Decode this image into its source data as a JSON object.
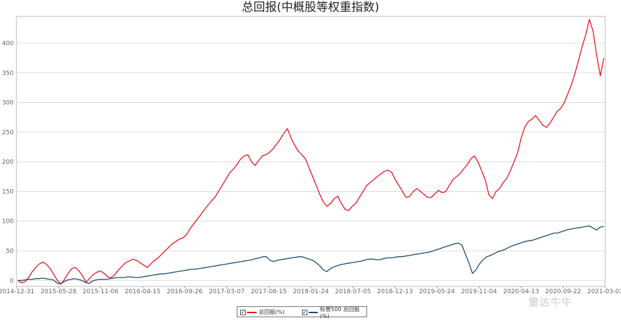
{
  "chart_data": {
    "type": "line",
    "title": "总回报(中概股等权重指数)",
    "xlabel": "",
    "ylabel": "",
    "ylim": [
      -10,
      445
    ],
    "yticks": [
      0,
      50,
      100,
      150,
      200,
      250,
      300,
      350,
      400
    ],
    "grid": "horizontal",
    "legend_position": "bottom",
    "x_tick_labels": [
      "2014-12-31",
      "2015-05-28",
      "2015-11-06",
      "2016-04-15",
      "2016-09-26",
      "2017-03-07",
      "2017-08-15",
      "2018-01-24",
      "2018-07-05",
      "2018-12-13",
      "2019-05-24",
      "2019-11-04",
      "2020-04-13",
      "2020-09-22",
      "2021-03-03"
    ],
    "series": [
      {
        "name": "总回报(%)",
        "color": "#e8141c",
        "values": [
          0,
          -4,
          -2,
          5,
          15,
          22,
          28,
          31,
          27,
          20,
          10,
          0,
          -6,
          2,
          12,
          20,
          22,
          16,
          8,
          -3,
          4,
          10,
          14,
          16,
          12,
          6,
          5,
          10,
          18,
          24,
          30,
          33,
          36,
          34,
          30,
          26,
          22,
          28,
          34,
          38,
          44,
          50,
          56,
          62,
          66,
          70,
          72,
          78,
          88,
          96,
          104,
          112,
          120,
          128,
          135,
          142,
          152,
          162,
          172,
          182,
          188,
          196,
          205,
          210,
          212,
          200,
          194,
          202,
          210,
          212,
          216,
          222,
          230,
          238,
          248,
          256,
          240,
          228,
          218,
          212,
          205,
          190,
          175,
          160,
          145,
          132,
          125,
          130,
          138,
          142,
          130,
          120,
          118,
          125,
          130,
          140,
          150,
          160,
          165,
          170,
          175,
          180,
          184,
          186,
          182,
          170,
          160,
          150,
          140,
          142,
          150,
          155,
          150,
          145,
          140,
          140,
          146,
          152,
          148,
          150,
          160,
          170,
          175,
          180,
          188,
          195,
          205,
          210,
          200,
          185,
          170,
          145,
          138,
          150,
          155,
          165,
          172,
          185,
          200,
          215,
          240,
          258,
          268,
          272,
          278,
          270,
          262,
          258,
          265,
          275,
          285,
          290,
          300,
          315,
          330,
          350,
          372,
          395,
          415,
          440,
          420,
          380,
          345,
          375
        ]
      },
      {
        "name": "标普500 总回报(%)",
        "color": "#1c4a6e",
        "values": [
          0,
          0,
          1,
          2,
          2,
          3,
          3,
          4,
          3,
          2,
          1,
          -4,
          -6,
          -2,
          1,
          2,
          3,
          2,
          0,
          -3,
          -5,
          -1,
          1,
          2,
          2,
          2,
          3,
          4,
          5,
          5,
          5,
          6,
          6,
          5,
          5,
          6,
          7,
          8,
          9,
          10,
          11,
          11,
          12,
          13,
          14,
          15,
          16,
          17,
          18,
          19,
          19,
          20,
          21,
          22,
          23,
          24,
          25,
          26,
          27,
          28,
          29,
          30,
          31,
          32,
          33,
          34,
          35,
          37,
          38,
          40,
          40,
          34,
          32,
          34,
          35,
          36,
          37,
          38,
          39,
          40,
          40,
          38,
          36,
          34,
          30,
          25,
          18,
          15,
          20,
          23,
          25,
          27,
          28,
          29,
          30,
          31,
          32,
          33,
          35,
          36,
          36,
          35,
          35,
          37,
          38,
          38,
          39,
          40,
          40,
          41,
          42,
          43,
          44,
          45,
          46,
          47,
          48,
          50,
          52,
          54,
          56,
          58,
          60,
          62,
          63,
          60,
          45,
          30,
          12,
          18,
          28,
          35,
          40,
          42,
          45,
          48,
          50,
          52,
          55,
          58,
          60,
          62,
          64,
          66,
          67,
          68,
          70,
          72,
          74,
          76,
          78,
          80,
          80,
          82,
          84,
          86,
          87,
          88,
          89,
          90,
          91,
          92,
          88,
          85,
          90,
          91
        ]
      }
    ]
  },
  "legend": [
    {
      "label": "总回报(%)",
      "check": "✓"
    },
    {
      "label": "标普500 总回报(%)",
      "check": "✓"
    }
  ],
  "watermark": "雷达牛牛"
}
